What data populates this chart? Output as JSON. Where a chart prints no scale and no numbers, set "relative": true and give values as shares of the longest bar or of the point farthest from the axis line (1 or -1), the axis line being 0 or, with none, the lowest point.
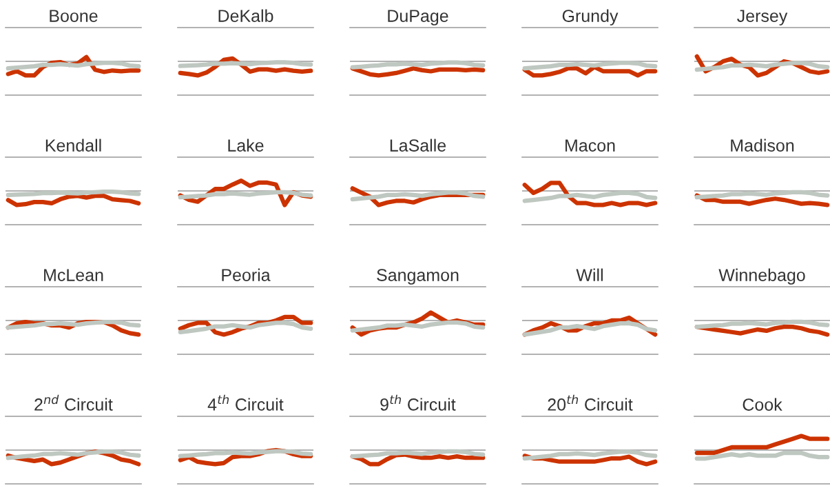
{
  "chart_data": [
    {
      "type": "line",
      "title": "Boone",
      "relative": true,
      "tick_labels": false,
      "categories": [
        null,
        null,
        null,
        null,
        null,
        null,
        null,
        null,
        null,
        null,
        null,
        null,
        null,
        null,
        null,
        null
      ],
      "series": [
        {
          "color": "#cc3300",
          "values": [
            -0.9,
            -0.7,
            -1,
            -1,
            -0.4,
            -0.1,
            -0.05,
            -0.25,
            -0.15,
            0.3,
            -0.6,
            -0.75,
            -0.65,
            -0.7,
            -0.65,
            -0.65
          ]
        },
        {
          "color": "#bfc7c1",
          "values": [
            -0.5,
            -0.45,
            -0.4,
            -0.35,
            -0.25,
            -0.25,
            -0.2,
            -0.25,
            -0.3,
            -0.2,
            -0.15,
            -0.1,
            -0.1,
            -0.15,
            -0.3,
            -0.35
          ]
        }
      ]
    },
    {
      "type": "line",
      "title": "DeKalb",
      "relative": true,
      "tick_labels": false,
      "categories": [
        null,
        null,
        null,
        null,
        null,
        null,
        null,
        null,
        null,
        null,
        null,
        null,
        null,
        null,
        null,
        null
      ],
      "series": [
        {
          "color": "#cc3300",
          "values": [
            -0.83,
            -0.9,
            -1,
            -0.8,
            -0.4,
            0.1,
            0.2,
            -0.23,
            -0.73,
            -0.57,
            -0.57,
            -0.67,
            -0.57,
            -0.67,
            -0.73,
            -0.67
          ]
        },
        {
          "color": "#bfc7c1",
          "values": [
            -0.33,
            -0.3,
            -0.27,
            -0.23,
            -0.17,
            -0.17,
            -0.13,
            -0.17,
            -0.2,
            -0.13,
            -0.1,
            -0.07,
            -0.07,
            -0.1,
            -0.2,
            -0.23
          ]
        }
      ]
    },
    {
      "type": "line",
      "title": "DuPage",
      "relative": true,
      "tick_labels": false,
      "categories": [
        null,
        null,
        null,
        null,
        null,
        null,
        null,
        null,
        null,
        null,
        null,
        null,
        null,
        null,
        null,
        null
      ],
      "series": [
        {
          "color": "#cc3300",
          "values": [
            -0.5,
            -0.71,
            -0.92,
            -1,
            -0.92,
            -0.83,
            -0.67,
            -0.5,
            -0.63,
            -0.71,
            -0.58,
            -0.58,
            -0.58,
            -0.63,
            -0.58,
            -0.63
          ]
        },
        {
          "color": "#bfc7c1",
          "values": [
            -0.42,
            -0.38,
            -0.33,
            -0.29,
            -0.21,
            -0.21,
            -0.17,
            -0.21,
            -0.25,
            -0.17,
            -0.13,
            -0.08,
            -0.08,
            -0.13,
            -0.25,
            -0.29
          ]
        }
      ]
    },
    {
      "type": "line",
      "title": "Grundy",
      "relative": true,
      "tick_labels": false,
      "categories": [
        null,
        null,
        null,
        null,
        null,
        null,
        null,
        null,
        null,
        null,
        null,
        null,
        null,
        null,
        null,
        null
      ],
      "series": [
        {
          "color": "#cc3300",
          "values": [
            -0.6,
            -1,
            -1,
            -0.9,
            -0.75,
            -0.5,
            -0.5,
            -0.85,
            -0.4,
            -0.7,
            -0.7,
            -0.7,
            -0.7,
            -1,
            -0.7,
            -0.7
          ]
        },
        {
          "color": "#bfc7c1",
          "values": [
            -0.5,
            -0.45,
            -0.4,
            -0.35,
            -0.25,
            -0.25,
            -0.2,
            -0.25,
            -0.3,
            -0.2,
            -0.15,
            -0.1,
            -0.1,
            -0.15,
            -0.3,
            -0.35
          ]
        }
      ]
    },
    {
      "type": "line",
      "title": "Jersey",
      "relative": true,
      "tick_labels": false,
      "categories": [
        null,
        null,
        null,
        null,
        null,
        null,
        null,
        null,
        null,
        null,
        null,
        null,
        null,
        null,
        null,
        null
      ],
      "series": [
        {
          "color": "#cc3300",
          "values": [
            0.35,
            -0.71,
            -0.41,
            0,
            0.18,
            -0.24,
            -0.41,
            -1,
            -0.82,
            -0.41,
            0,
            -0.12,
            -0.41,
            -0.71,
            -0.82,
            -0.71
          ]
        },
        {
          "color": "#bfc7c1",
          "values": [
            -0.59,
            -0.53,
            -0.47,
            -0.41,
            -0.29,
            -0.29,
            -0.24,
            -0.29,
            -0.35,
            -0.24,
            -0.18,
            -0.12,
            -0.12,
            -0.18,
            -0.35,
            -0.41
          ]
        }
      ]
    },
    {
      "type": "line",
      "title": "Kendall",
      "relative": true,
      "tick_labels": false,
      "categories": [
        null,
        null,
        null,
        null,
        null,
        null,
        null,
        null,
        null,
        null,
        null,
        null,
        null,
        null,
        null,
        null
      ],
      "series": [
        {
          "color": "#cc3300",
          "values": [
            -0.65,
            -1,
            -0.94,
            -0.79,
            -0.79,
            -0.88,
            -0.59,
            -0.41,
            -0.35,
            -0.47,
            -0.35,
            -0.35,
            -0.59,
            -0.65,
            -0.71,
            -0.88
          ]
        },
        {
          "color": "#bfc7c1",
          "values": [
            -0.29,
            -0.26,
            -0.24,
            -0.21,
            -0.15,
            -0.15,
            -0.12,
            -0.15,
            -0.18,
            -0.12,
            -0.09,
            -0.06,
            -0.06,
            -0.09,
            -0.18,
            -0.21
          ]
        }
      ]
    },
    {
      "type": "line",
      "title": "Lake",
      "relative": true,
      "tick_labels": false,
      "categories": [
        null,
        null,
        null,
        null,
        null,
        null,
        null,
        null,
        null,
        null,
        null,
        null,
        null,
        null,
        null,
        null
      ],
      "series": [
        {
          "color": "#cc3300",
          "values": [
            -0.32,
            -0.64,
            -0.77,
            -0.32,
            0.14,
            0.14,
            0.45,
            0.73,
            0.36,
            0.59,
            0.59,
            0.45,
            -1,
            -0.09,
            -0.32,
            -0.41
          ]
        },
        {
          "color": "#bfc7c1",
          "values": [
            -0.45,
            -0.41,
            -0.36,
            -0.32,
            -0.23,
            -0.23,
            -0.18,
            -0.23,
            -0.27,
            -0.18,
            -0.14,
            -0.09,
            -0.09,
            -0.14,
            -0.27,
            -0.32
          ]
        }
      ]
    },
    {
      "type": "line",
      "title": "LaSalle",
      "relative": true,
      "tick_labels": false,
      "categories": [
        null,
        null,
        null,
        null,
        null,
        null,
        null,
        null,
        null,
        null,
        null,
        null,
        null,
        null,
        null,
        null
      ],
      "series": [
        {
          "color": "#cc3300",
          "values": [
            0.18,
            -0.12,
            -0.41,
            -1,
            -0.82,
            -0.71,
            -0.71,
            -0.82,
            -0.59,
            -0.41,
            -0.29,
            -0.29,
            -0.29,
            -0.29,
            -0.29,
            -0.29
          ]
        },
        {
          "color": "#bfc7c1",
          "values": [
            -0.59,
            -0.53,
            -0.47,
            -0.41,
            -0.29,
            -0.29,
            -0.24,
            -0.29,
            -0.35,
            -0.24,
            -0.18,
            -0.12,
            -0.12,
            -0.18,
            -0.35,
            -0.41
          ]
        }
      ]
    },
    {
      "type": "line",
      "title": "Macon",
      "relative": true,
      "tick_labels": false,
      "categories": [
        null,
        null,
        null,
        null,
        null,
        null,
        null,
        null,
        null,
        null,
        null,
        null,
        null,
        null,
        null,
        null
      ],
      "series": [
        {
          "color": "#cc3300",
          "values": [
            0.43,
            -0.14,
            0.14,
            0.57,
            0.57,
            -0.36,
            -0.86,
            -0.86,
            -1,
            -1,
            -0.86,
            -1,
            -0.86,
            -0.86,
            -1,
            -0.86
          ]
        },
        {
          "color": "#bfc7c1",
          "values": [
            -0.71,
            -0.64,
            -0.57,
            -0.5,
            -0.36,
            -0.36,
            -0.29,
            -0.36,
            -0.43,
            -0.29,
            -0.21,
            -0.14,
            -0.14,
            -0.21,
            -0.43,
            -0.5
          ]
        }
      ]
    },
    {
      "type": "line",
      "title": "Madison",
      "relative": true,
      "tick_labels": false,
      "categories": [
        null,
        null,
        null,
        null,
        null,
        null,
        null,
        null,
        null,
        null,
        null,
        null,
        null,
        null,
        null,
        null
      ],
      "series": [
        {
          "color": "#cc3300",
          "values": [
            -0.32,
            -0.64,
            -0.64,
            -0.77,
            -0.77,
            -0.77,
            -0.91,
            -0.77,
            -0.64,
            -0.55,
            -0.64,
            -0.77,
            -0.91,
            -0.86,
            -0.91,
            -1
          ]
        },
        {
          "color": "#bfc7c1",
          "values": [
            -0.45,
            -0.41,
            -0.36,
            -0.32,
            -0.23,
            -0.23,
            -0.18,
            -0.23,
            -0.27,
            -0.18,
            -0.14,
            -0.09,
            -0.09,
            -0.14,
            -0.27,
            -0.32
          ]
        }
      ]
    },
    {
      "type": "line",
      "title": "McLean",
      "relative": true,
      "tick_labels": false,
      "categories": [
        null,
        null,
        null,
        null,
        null,
        null,
        null,
        null,
        null,
        null,
        null,
        null,
        null,
        null,
        null,
        null
      ],
      "series": [
        {
          "color": "#cc3300",
          "values": [
            -0.5,
            -0.2,
            -0.1,
            -0.2,
            -0.2,
            -0.35,
            -0.35,
            -0.5,
            -0.2,
            -0.1,
            -0.1,
            -0.1,
            -0.35,
            -0.7,
            -0.9,
            -1
          ]
        },
        {
          "color": "#bfc7c1",
          "values": [
            -0.5,
            -0.45,
            -0.4,
            -0.35,
            -0.25,
            -0.25,
            -0.2,
            -0.25,
            -0.3,
            -0.2,
            -0.15,
            -0.1,
            -0.1,
            -0.15,
            -0.3,
            -0.35
          ]
        }
      ]
    },
    {
      "type": "line",
      "title": "Peoria",
      "relative": true,
      "tick_labels": false,
      "categories": [
        null,
        null,
        null,
        null,
        null,
        null,
        null,
        null,
        null,
        null,
        null,
        null,
        null,
        null,
        null,
        null
      ],
      "series": [
        {
          "color": "#cc3300",
          "values": [
            -0.58,
            -0.33,
            -0.17,
            -0.17,
            -0.83,
            -1,
            -0.83,
            -0.58,
            -0.42,
            -0.17,
            -0.17,
            0,
            0.25,
            0.25,
            -0.17,
            -0.17
          ]
        },
        {
          "color": "#bfc7c1",
          "values": [
            -0.83,
            -0.75,
            -0.67,
            -0.58,
            -0.42,
            -0.42,
            -0.33,
            -0.42,
            -0.5,
            -0.33,
            -0.25,
            -0.17,
            -0.17,
            -0.25,
            -0.5,
            -0.58
          ]
        }
      ]
    },
    {
      "type": "line",
      "title": "Sangamon",
      "relative": true,
      "tick_labels": false,
      "categories": [
        null,
        null,
        null,
        null,
        null,
        null,
        null,
        null,
        null,
        null,
        null,
        null,
        null,
        null,
        null,
        null
      ],
      "series": [
        {
          "color": "#cc3300",
          "values": [
            -0.5,
            -1,
            -0.71,
            -0.57,
            -0.5,
            -0.5,
            -0.29,
            -0.14,
            0.14,
            0.57,
            0.21,
            -0.14,
            0,
            -0.14,
            -0.29,
            -0.29
          ]
        },
        {
          "color": "#bfc7c1",
          "values": [
            -0.71,
            -0.64,
            -0.57,
            -0.5,
            -0.36,
            -0.36,
            -0.29,
            -0.36,
            -0.43,
            -0.29,
            -0.21,
            -0.14,
            -0.14,
            -0.21,
            -0.43,
            -0.5
          ]
        }
      ]
    },
    {
      "type": "line",
      "title": "Will",
      "relative": true,
      "tick_labels": false,
      "categories": [
        null,
        null,
        null,
        null,
        null,
        null,
        null,
        null,
        null,
        null,
        null,
        null,
        null,
        null,
        null,
        null
      ],
      "series": [
        {
          "color": "#cc3300",
          "values": [
            -1,
            -0.7,
            -0.5,
            -0.2,
            -0.4,
            -0.7,
            -0.7,
            -0.4,
            -0.2,
            -0.2,
            0,
            0,
            0.2,
            -0.2,
            -0.6,
            -1
          ]
        },
        {
          "color": "#bfc7c1",
          "values": [
            -1,
            -0.9,
            -0.8,
            -0.7,
            -0.5,
            -0.5,
            -0.4,
            -0.5,
            -0.6,
            -0.4,
            -0.3,
            -0.2,
            -0.2,
            -0.3,
            -0.6,
            -0.7
          ]
        }
      ]
    },
    {
      "type": "line",
      "title": "Winnebago",
      "relative": true,
      "tick_labels": false,
      "categories": [
        null,
        null,
        null,
        null,
        null,
        null,
        null,
        null,
        null,
        null,
        null,
        null,
        null,
        null,
        null,
        null
      ],
      "series": [
        {
          "color": "#cc3300",
          "values": [
            -0.45,
            -0.55,
            -0.64,
            -0.73,
            -0.82,
            -0.91,
            -0.77,
            -0.64,
            -0.73,
            -0.55,
            -0.45,
            -0.45,
            -0.55,
            -0.73,
            -0.82,
            -1
          ]
        },
        {
          "color": "#bfc7c1",
          "values": [
            -0.45,
            -0.41,
            -0.36,
            -0.32,
            -0.23,
            -0.23,
            -0.18,
            -0.23,
            -0.27,
            -0.18,
            -0.14,
            -0.09,
            -0.09,
            -0.14,
            -0.27,
            -0.32
          ]
        }
      ]
    },
    {
      "type": "line",
      "title": "2$^{nd}$ Circuit",
      "relative": true,
      "tick_labels": false,
      "categories": [
        null,
        null,
        null,
        null,
        null,
        null,
        null,
        null,
        null,
        null,
        null,
        null,
        null,
        null,
        null,
        null
      ],
      "series": [
        {
          "color": "#cc3300",
          "values": [
            -0.39,
            -0.56,
            -0.67,
            -0.78,
            -0.67,
            -1,
            -0.89,
            -0.67,
            -0.44,
            -0.22,
            -0.11,
            -0.22,
            -0.39,
            -0.67,
            -0.78,
            -1
          ]
        },
        {
          "color": "#bfc7c1",
          "values": [
            -0.56,
            -0.5,
            -0.44,
            -0.39,
            -0.28,
            -0.28,
            -0.22,
            -0.28,
            -0.33,
            -0.22,
            -0.17,
            -0.11,
            -0.11,
            -0.17,
            -0.33,
            -0.39
          ]
        }
      ]
    },
    {
      "type": "line",
      "title": "4$^{th}$ Circuit",
      "relative": true,
      "tick_labels": false,
      "categories": [
        null,
        null,
        null,
        null,
        null,
        null,
        null,
        null,
        null,
        null,
        null,
        null,
        null,
        null,
        null,
        null
      ],
      "series": [
        {
          "color": "#cc3300",
          "values": [
            -0.71,
            -0.5,
            -0.83,
            -0.92,
            -1,
            -0.92,
            -0.5,
            -0.42,
            -0.42,
            -0.29,
            -0.08,
            0,
            -0.08,
            -0.29,
            -0.42,
            -0.42
          ]
        },
        {
          "color": "#bfc7c1",
          "values": [
            -0.42,
            -0.38,
            -0.33,
            -0.29,
            -0.21,
            -0.21,
            -0.17,
            -0.21,
            -0.25,
            -0.17,
            -0.13,
            -0.08,
            -0.08,
            -0.13,
            -0.25,
            -0.29
          ]
        }
      ]
    },
    {
      "type": "line",
      "title": "9$^{th}$ Circuit",
      "relative": true,
      "tick_labels": false,
      "categories": [
        null,
        null,
        null,
        null,
        null,
        null,
        null,
        null,
        null,
        null,
        null,
        null,
        null,
        null,
        null,
        null
      ],
      "series": [
        {
          "color": "#cc3300",
          "values": [
            -0.45,
            -0.64,
            -1,
            -1,
            -0.64,
            -0.36,
            -0.32,
            -0.45,
            -0.55,
            -0.55,
            -0.45,
            -0.55,
            -0.45,
            -0.55,
            -0.55,
            -0.55
          ]
        },
        {
          "color": "#bfc7c1",
          "values": [
            -0.45,
            -0.41,
            -0.36,
            -0.32,
            -0.23,
            -0.23,
            -0.18,
            -0.23,
            -0.27,
            -0.18,
            -0.14,
            -0.09,
            -0.09,
            -0.14,
            -0.27,
            -0.32
          ]
        }
      ]
    },
    {
      "type": "line",
      "title": "20$^{th}$ Circuit",
      "relative": true,
      "tick_labels": false,
      "categories": [
        null,
        null,
        null,
        null,
        null,
        null,
        null,
        null,
        null,
        null,
        null,
        null,
        null,
        null,
        null,
        null
      ],
      "series": [
        {
          "color": "#cc3300",
          "values": [
            -0.41,
            -0.59,
            -0.59,
            -0.71,
            -0.82,
            -0.82,
            -0.82,
            -0.82,
            -0.82,
            -0.71,
            -0.59,
            -0.59,
            -0.47,
            -0.82,
            -1,
            -0.82
          ]
        },
        {
          "color": "#bfc7c1",
          "values": [
            -0.59,
            -0.53,
            -0.47,
            -0.41,
            -0.29,
            -0.29,
            -0.24,
            -0.29,
            -0.35,
            -0.24,
            -0.18,
            -0.12,
            -0.12,
            -0.18,
            -0.35,
            -0.41
          ]
        }
      ]
    },
    {
      "type": "line",
      "title": "Cook",
      "relative": true,
      "tick_labels": false,
      "categories": [
        null,
        null,
        null,
        null,
        null,
        null,
        null,
        null,
        null,
        null,
        null,
        null,
        null,
        null,
        null,
        null
      ],
      "series": [
        {
          "color": "#cc3300",
          "values": [
            -0.2,
            -0.2,
            -0.2,
            0,
            0.2,
            0.2,
            0.2,
            0.2,
            0.2,
            0.4,
            0.6,
            0.8,
            1,
            0.8,
            0.8,
            0.8
          ]
        },
        {
          "color": "#bfc7c1",
          "values": [
            -0.6,
            -0.6,
            -0.5,
            -0.4,
            -0.3,
            -0.4,
            -0.3,
            -0.4,
            -0.4,
            -0.4,
            -0.2,
            -0.2,
            -0.2,
            -0.4,
            -0.5,
            -0.5
          ]
        }
      ]
    }
  ]
}
